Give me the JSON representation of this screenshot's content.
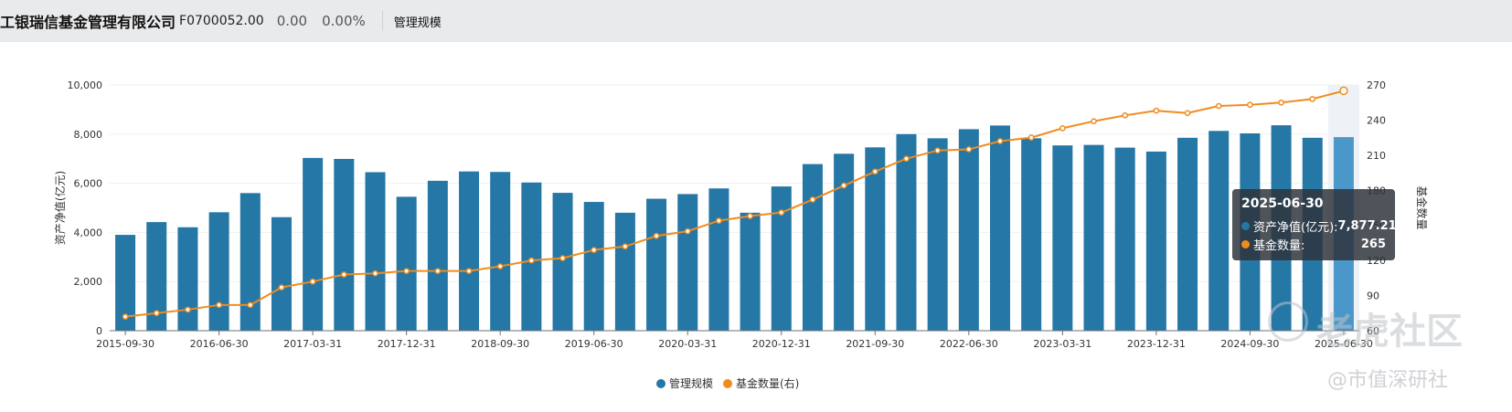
{
  "header": {
    "company": "工银瑞信基金管理有限公司",
    "code": "F0700052.00",
    "price": "0.00",
    "change_pct": "0.00%",
    "tab_label": "管理规模"
  },
  "tooltip": {
    "date": "2025-06-30",
    "row1_name": "资产净值(亿元):",
    "row1_value": "7,877.21",
    "row2_name": "基金数量:",
    "row2_value": "265"
  },
  "watermarks": {
    "main": "老虎社区",
    "sub": "@市值深研社"
  },
  "colors": {
    "bar": "#2577a6",
    "bar_highlight": "#4b97c9",
    "line": "#f08c1e",
    "hover_band": "#eef1f6"
  },
  "chart_data": {
    "type": "bar",
    "categories": [
      "2015-09-30",
      "2015-12-31",
      "2016-03-31",
      "2016-06-30",
      "2016-09-30",
      "2016-12-31",
      "2017-03-31",
      "2017-06-30",
      "2017-09-30",
      "2017-12-31",
      "2018-03-31",
      "2018-06-30",
      "2018-09-30",
      "2018-12-31",
      "2019-03-31",
      "2019-06-30",
      "2019-09-30",
      "2019-12-31",
      "2020-03-31",
      "2020-06-30",
      "2020-09-30",
      "2020-12-31",
      "2021-03-31",
      "2021-06-30",
      "2021-09-30",
      "2021-12-31",
      "2022-03-31",
      "2022-06-30",
      "2022-09-30",
      "2022-12-31",
      "2023-03-31",
      "2023-06-30",
      "2023-09-30",
      "2023-12-31",
      "2024-03-31",
      "2024-06-30",
      "2024-09-30",
      "2024-12-31",
      "2025-03-31",
      "2025-06-30"
    ],
    "x_tick_labels": [
      "2015-09-30",
      "2016-06-30",
      "2017-03-31",
      "2017-12-31",
      "2018-09-30",
      "2019-06-30",
      "2020-03-31",
      "2020-12-31",
      "2021-09-30",
      "2022-06-30",
      "2023-03-31",
      "2023-12-31",
      "2024-09-30",
      "2025-06-30"
    ],
    "series": [
      {
        "name": "管理规模",
        "axis": "left",
        "type": "bar",
        "values": [
          3900,
          4420,
          4210,
          4820,
          5600,
          4620,
          7030,
          6990,
          6450,
          5450,
          6100,
          6480,
          6460,
          6030,
          5610,
          5240,
          4800,
          5370,
          5560,
          5790,
          4800,
          5870,
          6780,
          7200,
          7460,
          8000,
          7830,
          8200,
          8350,
          7830,
          7540,
          7560,
          7450,
          7290,
          7850,
          8130,
          8030,
          8360,
          7850,
          7877.21
        ]
      },
      {
        "name": "基金数量(右)",
        "axis": "right",
        "type": "line",
        "values": [
          72,
          75,
          78,
          82,
          82,
          97,
          102,
          108,
          109,
          111,
          111,
          111,
          115,
          120,
          122,
          129,
          132,
          141,
          145,
          154,
          158,
          161,
          172,
          184,
          196,
          207,
          214,
          215,
          222,
          225,
          233,
          239,
          244,
          248,
          246,
          252,
          253,
          255,
          258,
          265
        ]
      }
    ],
    "ylabel_left": "资产净值(亿元)",
    "ylabel_right": "基金数量",
    "ylim_left": [
      0,
      10000
    ],
    "yticks_left": [
      "0",
      "2,000",
      "4,000",
      "6,000",
      "8,000",
      "10,000"
    ],
    "ylim_right": [
      60,
      270
    ],
    "yticks_right": [
      "60",
      "90",
      "120",
      "150",
      "180",
      "210",
      "240",
      "270"
    ],
    "highlighted_category": "2025-06-30",
    "legend_position": "bottom",
    "grid": true
  }
}
